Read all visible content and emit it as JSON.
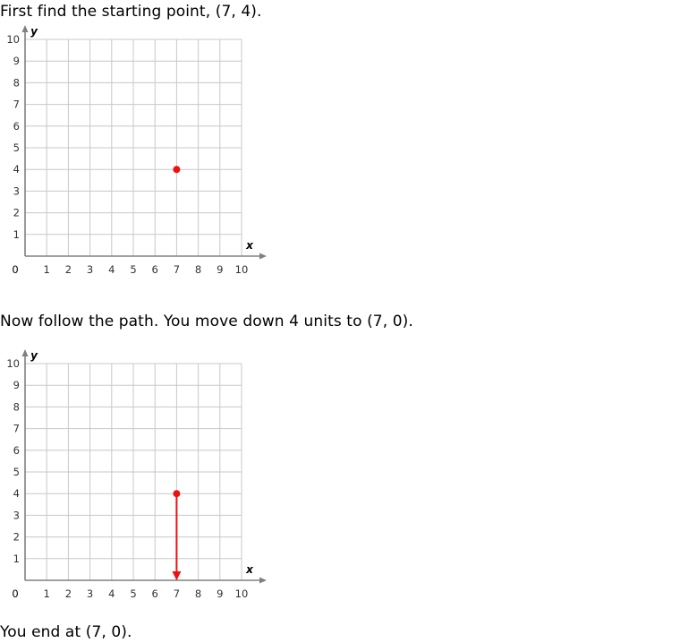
{
  "text": {
    "intro": "First find the starting point, (7, 4).",
    "step": "Now follow the path. You move down 4 units to (7, 0).",
    "result": "You end at (7, 0)."
  },
  "chart_data": [
    {
      "type": "scatter",
      "xlabel": "x",
      "ylabel": "y",
      "xlim": [
        0,
        10
      ],
      "ylim": [
        0,
        10
      ],
      "x_ticks": [
        "1",
        "2",
        "3",
        "4",
        "5",
        "6",
        "7",
        "8",
        "9",
        "10"
      ],
      "y_ticks": [
        "1",
        "2",
        "3",
        "4",
        "5",
        "6",
        "7",
        "8",
        "9",
        "10"
      ],
      "origin_label": "0",
      "grid": true,
      "points": [
        {
          "x": 7,
          "y": 4
        }
      ],
      "color": "#ee1111"
    },
    {
      "type": "line",
      "xlabel": "x",
      "ylabel": "y",
      "xlim": [
        0,
        10
      ],
      "ylim": [
        0,
        10
      ],
      "x_ticks": [
        "1",
        "2",
        "3",
        "4",
        "5",
        "6",
        "7",
        "8",
        "9",
        "10"
      ],
      "y_ticks": [
        "1",
        "2",
        "3",
        "4",
        "5",
        "6",
        "7",
        "8",
        "9",
        "10"
      ],
      "origin_label": "0",
      "grid": true,
      "points": [
        {
          "x": 7,
          "y": 4
        }
      ],
      "path": {
        "from": {
          "x": 7,
          "y": 4
        },
        "to": {
          "x": 7,
          "y": 0
        },
        "arrow": true
      },
      "color": "#ee1111"
    }
  ]
}
